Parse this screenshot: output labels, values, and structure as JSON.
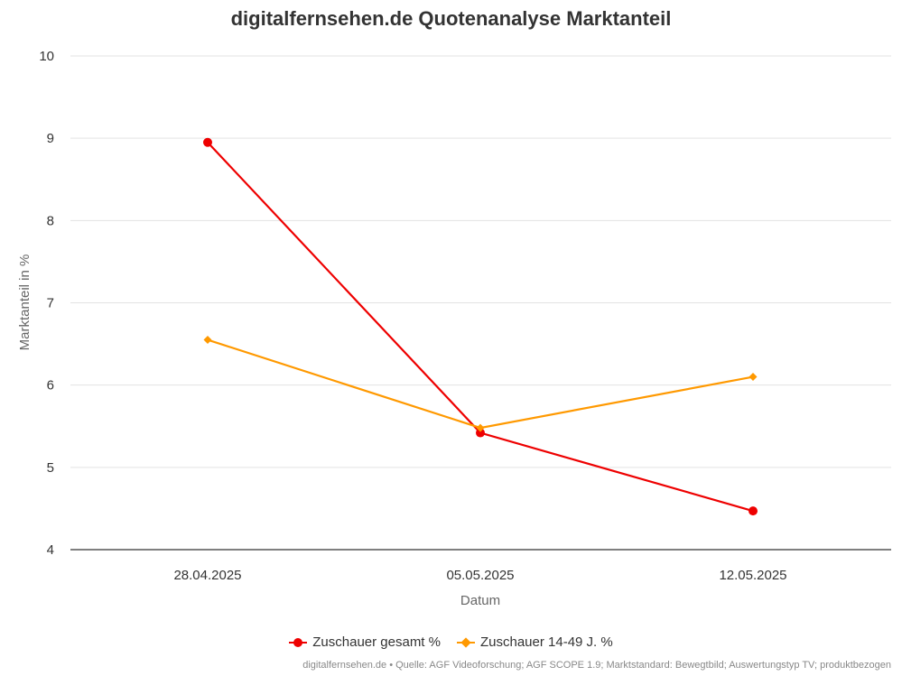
{
  "title": "digitalfernsehen.de Quotenanalyse Marktanteil",
  "source": "digitalfernsehen.de • Quelle: AGF Videoforschung; AGF SCOPE 1.9; Marktstandard: Bewegtbild; Auswertungstyp TV; produktbezogen",
  "chart_data": {
    "type": "line",
    "title": "digitalfernsehen.de Quotenanalyse Marktanteil",
    "xlabel": "Datum",
    "ylabel": "Marktanteil in %",
    "categories": [
      "28.04.2025",
      "05.05.2025",
      "12.05.2025"
    ],
    "ylim": [
      4,
      10
    ],
    "yticks": [
      4,
      5,
      6,
      7,
      8,
      9,
      10
    ],
    "grid": true,
    "legend_position": "bottom",
    "series": [
      {
        "name": "Zuschauer gesamt %",
        "values": [
          8.95,
          5.42,
          4.47
        ],
        "color": "#ee0000",
        "marker": "circle"
      },
      {
        "name": "Zuschauer 14-49 J. %",
        "values": [
          6.55,
          5.48,
          6.1
        ],
        "color": "#ff9900",
        "marker": "diamond"
      }
    ]
  }
}
